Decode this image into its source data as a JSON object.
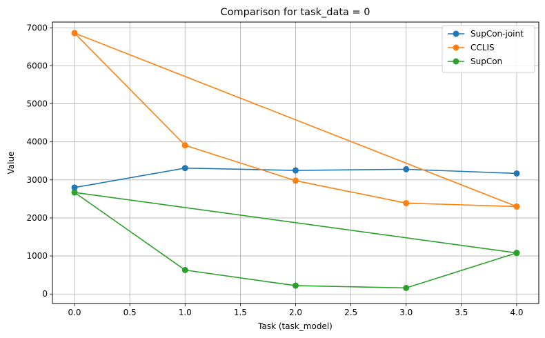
{
  "chart_data": {
    "type": "line",
    "title": "Comparison for task_data = 0",
    "xlabel": "Task (task_model)",
    "ylabel": "Value",
    "xlim": [
      -0.2,
      4.2
    ],
    "ylim": [
      -250,
      7150
    ],
    "xticks": [
      0.0,
      0.5,
      1.0,
      1.5,
      2.0,
      2.5,
      3.0,
      3.5,
      4.0
    ],
    "xtick_labels": [
      "0.0",
      "0.5",
      "1.0",
      "1.5",
      "2.0",
      "2.5",
      "3.0",
      "3.5",
      "4.0"
    ],
    "yticks": [
      0,
      1000,
      2000,
      3000,
      4000,
      5000,
      6000,
      7000
    ],
    "ytick_labels": [
      "0",
      "1000",
      "2000",
      "3000",
      "4000",
      "5000",
      "6000",
      "7000"
    ],
    "grid": true,
    "legend_position": "top-right",
    "series": [
      {
        "name": "SupCon-joint",
        "color": "#1f77b4",
        "points": [
          [
            0,
            2800
          ],
          [
            1,
            3310
          ],
          [
            2,
            3250
          ],
          [
            3,
            3280
          ],
          [
            4,
            3170
          ]
        ]
      },
      {
        "name": "CCLIS",
        "color": "#ff7f0e",
        "points": [
          [
            0,
            6860
          ],
          [
            1,
            3910
          ],
          [
            2,
            2980
          ],
          [
            3,
            2390
          ],
          [
            4,
            2300
          ],
          [
            0,
            6860
          ],
          [
            4,
            2300
          ]
        ]
      },
      {
        "name": "SupCon",
        "color": "#2ca02c",
        "points": [
          [
            0,
            2670
          ],
          [
            1,
            630
          ],
          [
            2,
            220
          ],
          [
            3,
            160
          ],
          [
            4,
            1080
          ],
          [
            0,
            2670
          ],
          [
            4,
            1080
          ]
        ]
      }
    ]
  }
}
